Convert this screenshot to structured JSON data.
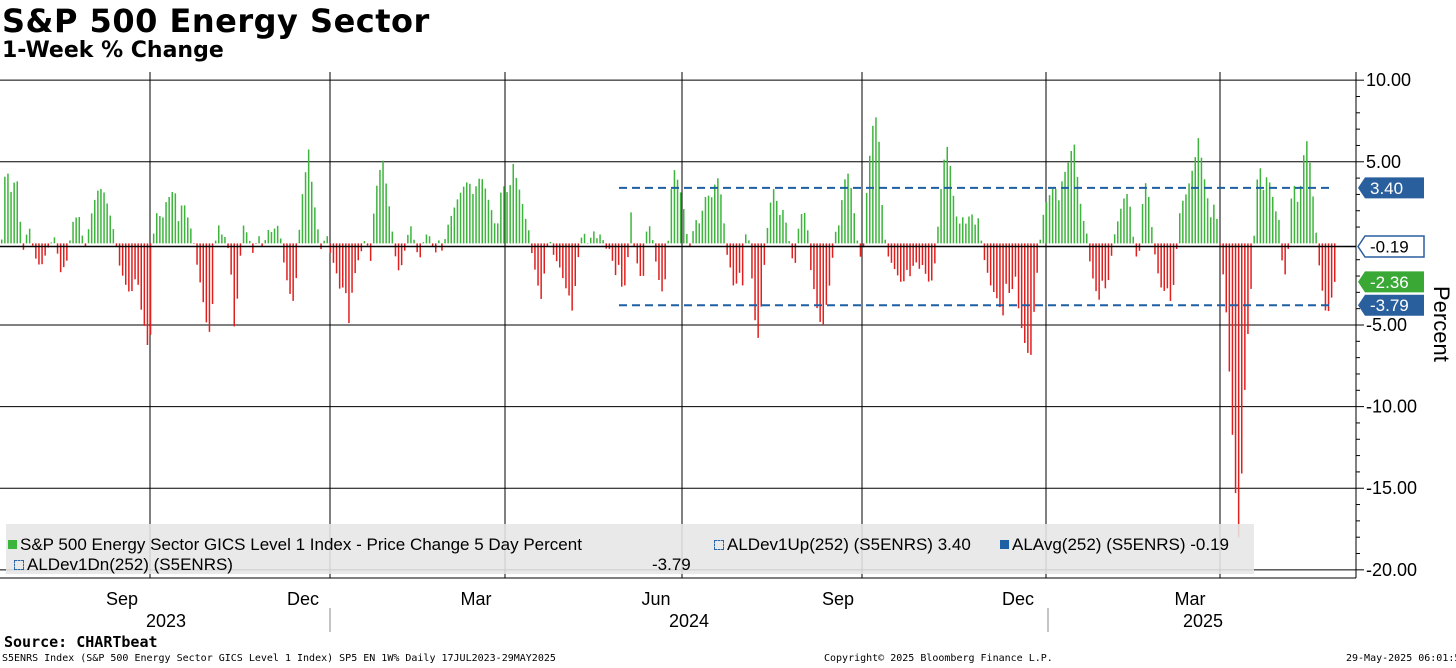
{
  "header": {
    "title": "S&P 500 Energy Sector",
    "subtitle": "1-Week % Change"
  },
  "colors": {
    "positive": "#3db53d",
    "negative": "#e0201f",
    "band": "#1f5fa3",
    "label_blue": "#2a5f9e",
    "label_green": "#3aa835",
    "grid": "#000000"
  },
  "chart_data": {
    "type": "bar",
    "title": "S&P 500 Energy Sector",
    "subtitle": "1-Week % Change",
    "ylabel": "Percent",
    "ylim": [
      -20.5,
      10.5
    ],
    "y_ticks": [
      "10.00",
      "5.00",
      "-5.00",
      "-10.00",
      "-15.00",
      "-20.00"
    ],
    "y_tick_values": [
      10,
      5,
      -5,
      -10,
      -15,
      -20
    ],
    "x_months": [
      "Sep",
      "Dec",
      "Mar",
      "Jun",
      "Sep",
      "Dec",
      "Mar"
    ],
    "x_years": [
      "2023",
      "2024",
      "2025"
    ],
    "date_range": "17JUL2023-29MAY2025",
    "reference_lines": {
      "dev_up": 3.4,
      "average": -0.19,
      "dev_down": -3.79
    },
    "value_labels": [
      {
        "text": "3.40",
        "value": 3.4,
        "color": "blue"
      },
      {
        "text": "-0.19",
        "value": -0.19,
        "color": "outline"
      },
      {
        "text": "-2.36",
        "value": -2.36,
        "color": "green"
      },
      {
        "text": "-3.79",
        "value": -3.79,
        "color": "blue"
      }
    ],
    "last_value": -2.36,
    "series_name": "S&P 500 Energy Sector GICS Level 1 Index - Price Change 5 Day Percent",
    "anchors": [
      [
        0,
        -1.0
      ],
      [
        5,
        5.2
      ],
      [
        10,
        3.1
      ],
      [
        16,
        4.2
      ],
      [
        22,
        -0.6
      ],
      [
        28,
        1.2
      ],
      [
        34,
        -0.8
      ],
      [
        40,
        -1.5
      ],
      [
        47,
        -0.3
      ],
      [
        54,
        0.4
      ],
      [
        60,
        -1.8
      ],
      [
        66,
        -1.1
      ],
      [
        72,
        1.3
      ],
      [
        78,
        1.8
      ],
      [
        84,
        -0.4
      ],
      [
        90,
        1.6
      ],
      [
        96,
        3.2
      ],
      [
        102,
        3.4
      ],
      [
        108,
        2.1
      ],
      [
        114,
        0.5
      ],
      [
        118,
        -1.2
      ],
      [
        124,
        -2.4
      ],
      [
        130,
        -3.2
      ],
      [
        136,
        -1.8
      ],
      [
        140,
        -3.9
      ],
      [
        145,
        -5.5
      ],
      [
        149,
        -7.2
      ],
      [
        153,
        0.8
      ],
      [
        157,
        2.2
      ],
      [
        161,
        1.2
      ],
      [
        165,
        2.5
      ],
      [
        170,
        3.0
      ],
      [
        174,
        3.4
      ],
      [
        178,
        1.2
      ],
      [
        182,
        2.8
      ],
      [
        186,
        1.8
      ],
      [
        192,
        0.5
      ],
      [
        196,
        -1.2
      ],
      [
        200,
        -2.6
      ],
      [
        204,
        -4.2
      ],
      [
        208,
        -5.8
      ],
      [
        212,
        -3.6
      ],
      [
        216,
        1.6
      ],
      [
        220,
        0.6
      ],
      [
        226,
        0.3
      ],
      [
        230,
        -1.5
      ],
      [
        234,
        -5.6
      ],
      [
        238,
        -2.2
      ],
      [
        242,
        1.2
      ],
      [
        248,
        0.4
      ],
      [
        252,
        -0.6
      ],
      [
        258,
        0.5
      ],
      [
        262,
        -0.3
      ],
      [
        268,
        0.9
      ],
      [
        272,
        0.6
      ],
      [
        276,
        1.3
      ],
      [
        280,
        0.3
      ],
      [
        284,
        -1.6
      ],
      [
        288,
        -2.8
      ],
      [
        292,
        -3.7
      ],
      [
        296,
        -1.9
      ],
      [
        300,
        2.3
      ],
      [
        304,
        4.0
      ],
      [
        308,
        5.8
      ],
      [
        312,
        3.1
      ],
      [
        316,
        1.4
      ],
      [
        320,
        -0.4
      ],
      [
        326,
        0.6
      ],
      [
        330,
        -0.7
      ],
      [
        335,
        -1.6
      ],
      [
        340,
        -3.1
      ],
      [
        344,
        -2.3
      ],
      [
        348,
        -5.0
      ],
      [
        352,
        -2.6
      ],
      [
        356,
        -1.3
      ],
      [
        360,
        -0.6
      ],
      [
        365,
        0.4
      ],
      [
        370,
        -1.1
      ],
      [
        374,
        2.8
      ],
      [
        378,
        4.2
      ],
      [
        382,
        5.2
      ],
      [
        386,
        3.4
      ],
      [
        390,
        1.6
      ],
      [
        394,
        -0.6
      ],
      [
        398,
        -1.7
      ],
      [
        402,
        -1.2
      ],
      [
        406,
        0.3
      ],
      [
        410,
        1.1
      ],
      [
        416,
        -0.5
      ],
      [
        420,
        -0.9
      ],
      [
        424,
        0.6
      ],
      [
        430,
        0.4
      ],
      [
        434,
        -0.8
      ],
      [
        438,
        0.2
      ],
      [
        442,
        -0.6
      ],
      [
        446,
        0.9
      ],
      [
        450,
        1.6
      ],
      [
        456,
        2.6
      ],
      [
        462,
        3.4
      ],
      [
        468,
        3.9
      ],
      [
        472,
        3.0
      ],
      [
        476,
        3.6
      ],
      [
        480,
        4.2
      ],
      [
        484,
        3.5
      ],
      [
        488,
        2.6
      ],
      [
        492,
        1.8
      ],
      [
        496,
        0.6
      ],
      [
        500,
        3.1
      ],
      [
        504,
        3.6
      ],
      [
        508,
        2.8
      ],
      [
        512,
        5.0
      ],
      [
        516,
        3.9
      ],
      [
        520,
        3.0
      ],
      [
        524,
        1.7
      ],
      [
        528,
        0.8
      ],
      [
        532,
        -1.0
      ],
      [
        536,
        -2.1
      ],
      [
        540,
        -3.6
      ],
      [
        544,
        -1.6
      ],
      [
        548,
        0.6
      ],
      [
        552,
        -0.6
      ],
      [
        556,
        -1.1
      ],
      [
        560,
        -1.6
      ],
      [
        564,
        -2.6
      ],
      [
        568,
        -3.1
      ],
      [
        572,
        -4.3
      ],
      [
        576,
        -1.6
      ],
      [
        580,
        0.3
      ],
      [
        584,
        0.6
      ],
      [
        588,
        -0.2
      ],
      [
        592,
        0.9
      ],
      [
        596,
        0.3
      ],
      [
        600,
        0.6
      ],
      [
        606,
        -0.4
      ],
      [
        610,
        -0.3
      ],
      [
        614,
        -2.1
      ],
      [
        618,
        -1.3
      ],
      [
        622,
        -3.1
      ],
      [
        626,
        -2.1
      ],
      [
        630,
        2.1
      ],
      [
        634,
        -0.6
      ],
      [
        638,
        -1.6
      ],
      [
        642,
        -2.6
      ],
      [
        646,
        0.9
      ],
      [
        650,
        1.1
      ],
      [
        654,
        -0.7
      ],
      [
        658,
        -2.2
      ],
      [
        662,
        -3.1
      ],
      [
        666,
        -1.6
      ],
      [
        670,
        3.1
      ],
      [
        674,
        4.6
      ],
      [
        678,
        3.6
      ],
      [
        682,
        2.6
      ],
      [
        686,
        0.6
      ],
      [
        690,
        -0.4
      ],
      [
        694,
        1.6
      ],
      [
        698,
        1.1
      ],
      [
        702,
        2.1
      ],
      [
        706,
        3.2
      ],
      [
        710,
        2.6
      ],
      [
        714,
        3.6
      ],
      [
        718,
        4.1
      ],
      [
        722,
        2.1
      ],
      [
        726,
        -0.6
      ],
      [
        730,
        -1.6
      ],
      [
        734,
        -3.1
      ],
      [
        738,
        -1.6
      ],
      [
        742,
        -2.6
      ],
      [
        746,
        1.6
      ],
      [
        750,
        -1.1
      ],
      [
        754,
        -4.6
      ],
      [
        758,
        -6.0
      ],
      [
        762,
        -2.6
      ],
      [
        766,
        0.6
      ],
      [
        770,
        2.6
      ],
      [
        774,
        3.6
      ],
      [
        778,
        1.6
      ],
      [
        782,
        2.1
      ],
      [
        786,
        1.1
      ],
      [
        790,
        -0.5
      ],
      [
        794,
        -1.6
      ],
      [
        798,
        1.1
      ],
      [
        802,
        2.1
      ],
      [
        806,
        1.6
      ],
      [
        810,
        -1.6
      ],
      [
        814,
        -3.1
      ],
      [
        818,
        -4.6
      ],
      [
        822,
        -5.2
      ],
      [
        826,
        -3.6
      ],
      [
        830,
        -2.1
      ],
      [
        834,
        0.6
      ],
      [
        838,
        1.1
      ],
      [
        842,
        3.1
      ],
      [
        846,
        4.6
      ],
      [
        850,
        3.6
      ],
      [
        854,
        1.6
      ],
      [
        858,
        -0.6
      ],
      [
        862,
        -1.1
      ],
      [
        866,
        3.2
      ],
      [
        870,
        6.1
      ],
      [
        874,
        8.2
      ],
      [
        878,
        6.6
      ],
      [
        882,
        1.6
      ],
      [
        886,
        -0.6
      ],
      [
        890,
        -1.1
      ],
      [
        894,
        -1.6
      ],
      [
        898,
        -2.1
      ],
      [
        902,
        -2.6
      ],
      [
        906,
        -1.6
      ],
      [
        910,
        -2.1
      ],
      [
        914,
        -0.9
      ],
      [
        918,
        -1.6
      ],
      [
        922,
        -1.3
      ],
      [
        926,
        -2.1
      ],
      [
        930,
        -2.6
      ],
      [
        934,
        -1.3
      ],
      [
        938,
        1.6
      ],
      [
        942,
        4.6
      ],
      [
        946,
        6.1
      ],
      [
        950,
        4.6
      ],
      [
        954,
        2.1
      ],
      [
        958,
        1.1
      ],
      [
        962,
        1.6
      ],
      [
        966,
        1.1
      ],
      [
        970,
        2.1
      ],
      [
        974,
        1.1
      ],
      [
        978,
        1.6
      ],
      [
        982,
        -0.6
      ],
      [
        986,
        -1.6
      ],
      [
        990,
        -2.6
      ],
      [
        994,
        -3.1
      ],
      [
        998,
        -3.6
      ],
      [
        1002,
        -4.6
      ],
      [
        1006,
        -2.1
      ],
      [
        1010,
        -3.6
      ],
      [
        1014,
        -1.6
      ],
      [
        1018,
        -4.1
      ],
      [
        1022,
        -5.6
      ],
      [
        1026,
        -6.6
      ],
      [
        1030,
        -7.0
      ],
      [
        1034,
        -3.6
      ],
      [
        1038,
        -0.6
      ],
      [
        1042,
        1.6
      ],
      [
        1046,
        2.6
      ],
      [
        1050,
        3.1
      ],
      [
        1054,
        3.6
      ],
      [
        1058,
        2.6
      ],
      [
        1062,
        4.1
      ],
      [
        1066,
        4.6
      ],
      [
        1070,
        5.6
      ],
      [
        1074,
        6.1
      ],
      [
        1078,
        3.1
      ],
      [
        1082,
        1.6
      ],
      [
        1086,
        0.6
      ],
      [
        1090,
        -1.6
      ],
      [
        1094,
        -2.6
      ],
      [
        1098,
        -3.6
      ],
      [
        1102,
        -2.1
      ],
      [
        1106,
        -3.1
      ],
      [
        1110,
        -1.1
      ],
      [
        1114,
        0.6
      ],
      [
        1118,
        1.6
      ],
      [
        1122,
        2.6
      ],
      [
        1126,
        3.1
      ],
      [
        1130,
        2.1
      ],
      [
        1134,
        -0.6
      ],
      [
        1138,
        -1.1
      ],
      [
        1142,
        2.6
      ],
      [
        1146,
        4.1
      ],
      [
        1150,
        1.6
      ],
      [
        1154,
        -0.6
      ],
      [
        1158,
        -2.1
      ],
      [
        1162,
        -3.1
      ],
      [
        1166,
        -2.6
      ],
      [
        1170,
        -3.6
      ],
      [
        1174,
        -2.1
      ],
      [
        1178,
        1.6
      ],
      [
        1182,
        2.6
      ],
      [
        1186,
        3.1
      ],
      [
        1190,
        4.1
      ],
      [
        1194,
        5.1
      ],
      [
        1198,
        6.6
      ],
      [
        1202,
        4.6
      ],
      [
        1206,
        3.1
      ],
      [
        1210,
        1.6
      ],
      [
        1214,
        2.6
      ],
      [
        1218,
        0.6
      ],
      [
        1222,
        -1.6
      ],
      [
        1226,
        -4.6
      ],
      [
        1230,
        -9.6
      ],
      [
        1234,
        -14.6
      ],
      [
        1238,
        -18.1
      ],
      [
        1240,
        -16.6
      ],
      [
        1242,
        -11.6
      ],
      [
        1246,
        -6.6
      ],
      [
        1250,
        -3.1
      ],
      [
        1254,
        1.1
      ],
      [
        1258,
        5.6
      ],
      [
        1262,
        3.1
      ],
      [
        1266,
        4.1
      ],
      [
        1270,
        3.6
      ],
      [
        1274,
        2.1
      ],
      [
        1278,
        1.6
      ],
      [
        1282,
        -1.6
      ],
      [
        1286,
        -2.1
      ],
      [
        1290,
        2.6
      ],
      [
        1294,
        3.6
      ],
      [
        1298,
        2.1
      ],
      [
        1302,
        5.1
      ],
      [
        1306,
        6.3
      ],
      [
        1310,
        4.6
      ],
      [
        1314,
        1.6
      ],
      [
        1318,
        -1.1
      ],
      [
        1322,
        -3.1
      ],
      [
        1326,
        -4.6
      ],
      [
        1330,
        -3.6
      ],
      [
        1334,
        -2.36
      ]
    ]
  },
  "legend": {
    "item1_label": "S&P 500 Energy Sector GICS Level 1 Index - Price Change 5 Day Percent",
    "item2_label": "ALDev1Up(252) (S5ENRS) 3.40",
    "item3_label": "ALAvg(252) (S5ENRS) -0.19",
    "item4_label": "ALDev1Dn(252) (S5ENRS)",
    "item4_value": "-3.79"
  },
  "footer": {
    "source": "Source: CHARTbeat",
    "left": "S5ENRS Index (S&P 500 Energy Sector GICS Level 1 Index) SP5 EN 1W% Daily 17JUL2023-29MAY2025",
    "center": "Copyright© 2025 Bloomberg Finance L.P.",
    "right": "29-May-2025 06:01:53"
  }
}
